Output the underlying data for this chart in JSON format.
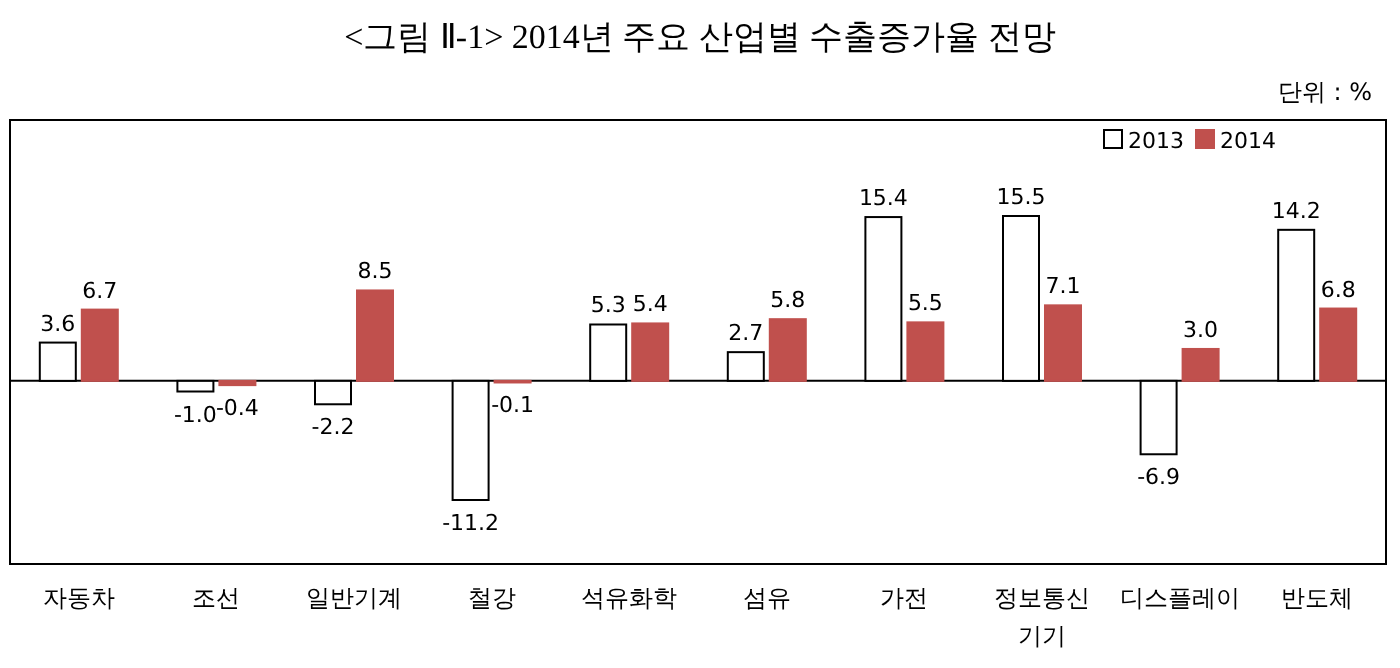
{
  "chart_data": {
    "type": "bar",
    "title": "<그림 Ⅱ-1> 2014년 주요 산업별 수출증가율 전망",
    "annotations": [
      "단위 : %"
    ],
    "categories": [
      "자동차",
      "조선",
      "일반기계",
      "철강",
      "석유화학",
      "섬유",
      "가전",
      "정보통신기기",
      "디스플레이",
      "반도체"
    ],
    "series": [
      {
        "name": "2013",
        "color": "#ffffff",
        "values": [
          3.6,
          -1.0,
          -2.2,
          -11.2,
          5.3,
          2.7,
          15.4,
          15.5,
          -6.9,
          14.2
        ],
        "value_labels": [
          "3.6",
          "-1.0",
          "-2.2",
          "-11.2",
          "5.3",
          "2.7",
          "15.4",
          "15.5",
          "-6.9",
          "14.2"
        ]
      },
      {
        "name": "2014",
        "color": "#c0504d",
        "values": [
          6.7,
          -0.4,
          8.5,
          -0.1,
          5.4,
          5.8,
          5.5,
          7.1,
          3.0,
          6.8
        ],
        "value_labels": [
          "6.7",
          "-0.4",
          "8.5",
          "-0.1",
          "5.4",
          "5.8",
          "5.5",
          "7.1",
          "3.0",
          "6.8"
        ]
      }
    ],
    "legend": "top right"
  }
}
